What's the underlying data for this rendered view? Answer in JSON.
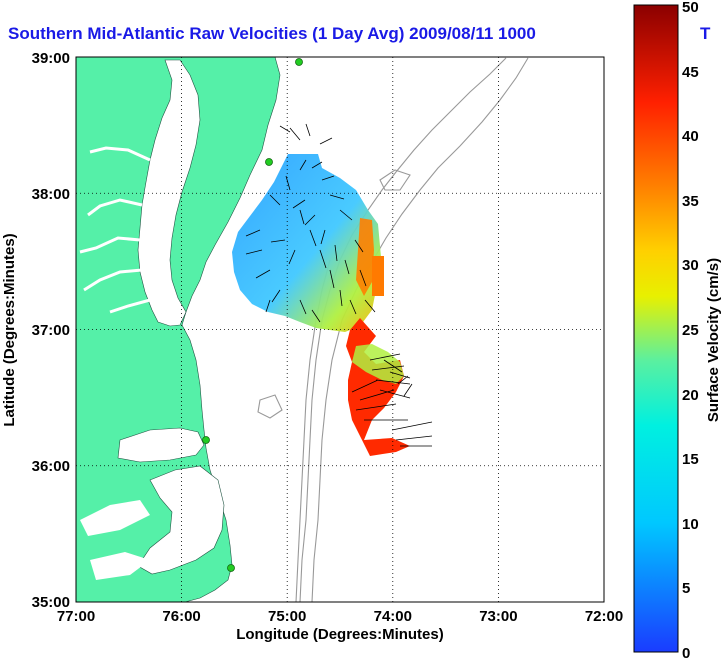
{
  "title": "Southern Mid-Atlantic Raw Velocities (1 Day Avg) 2009/08/11 1000",
  "title_tail": "T",
  "xlabel": "Longitude (Degrees:Minutes)",
  "ylabel": "Latitude (Degrees:Minutes)",
  "colorbar_label": "Surface Velocity (cm/s)",
  "x_ticks": [
    "77:00",
    "76:00",
    "75:00",
    "74:00",
    "73:00",
    "72:00"
  ],
  "y_ticks": [
    "39:00",
    "38:00",
    "37:00",
    "36:00",
    "35:00"
  ],
  "colorbar_ticks": [
    "50",
    "45",
    "40",
    "35",
    "30",
    "25",
    "20",
    "15",
    "10",
    "5",
    "0"
  ],
  "colors": {
    "land": "#55f0a8",
    "title": "#1a1ae6",
    "grid": "#000000",
    "bathymetry": "#999999",
    "station": "#22cc22"
  },
  "chart_data": {
    "type": "heatmap",
    "xlim": [
      -77,
      -72
    ],
    "ylim": [
      35,
      39
    ],
    "clim": [
      0,
      50
    ]
  }
}
